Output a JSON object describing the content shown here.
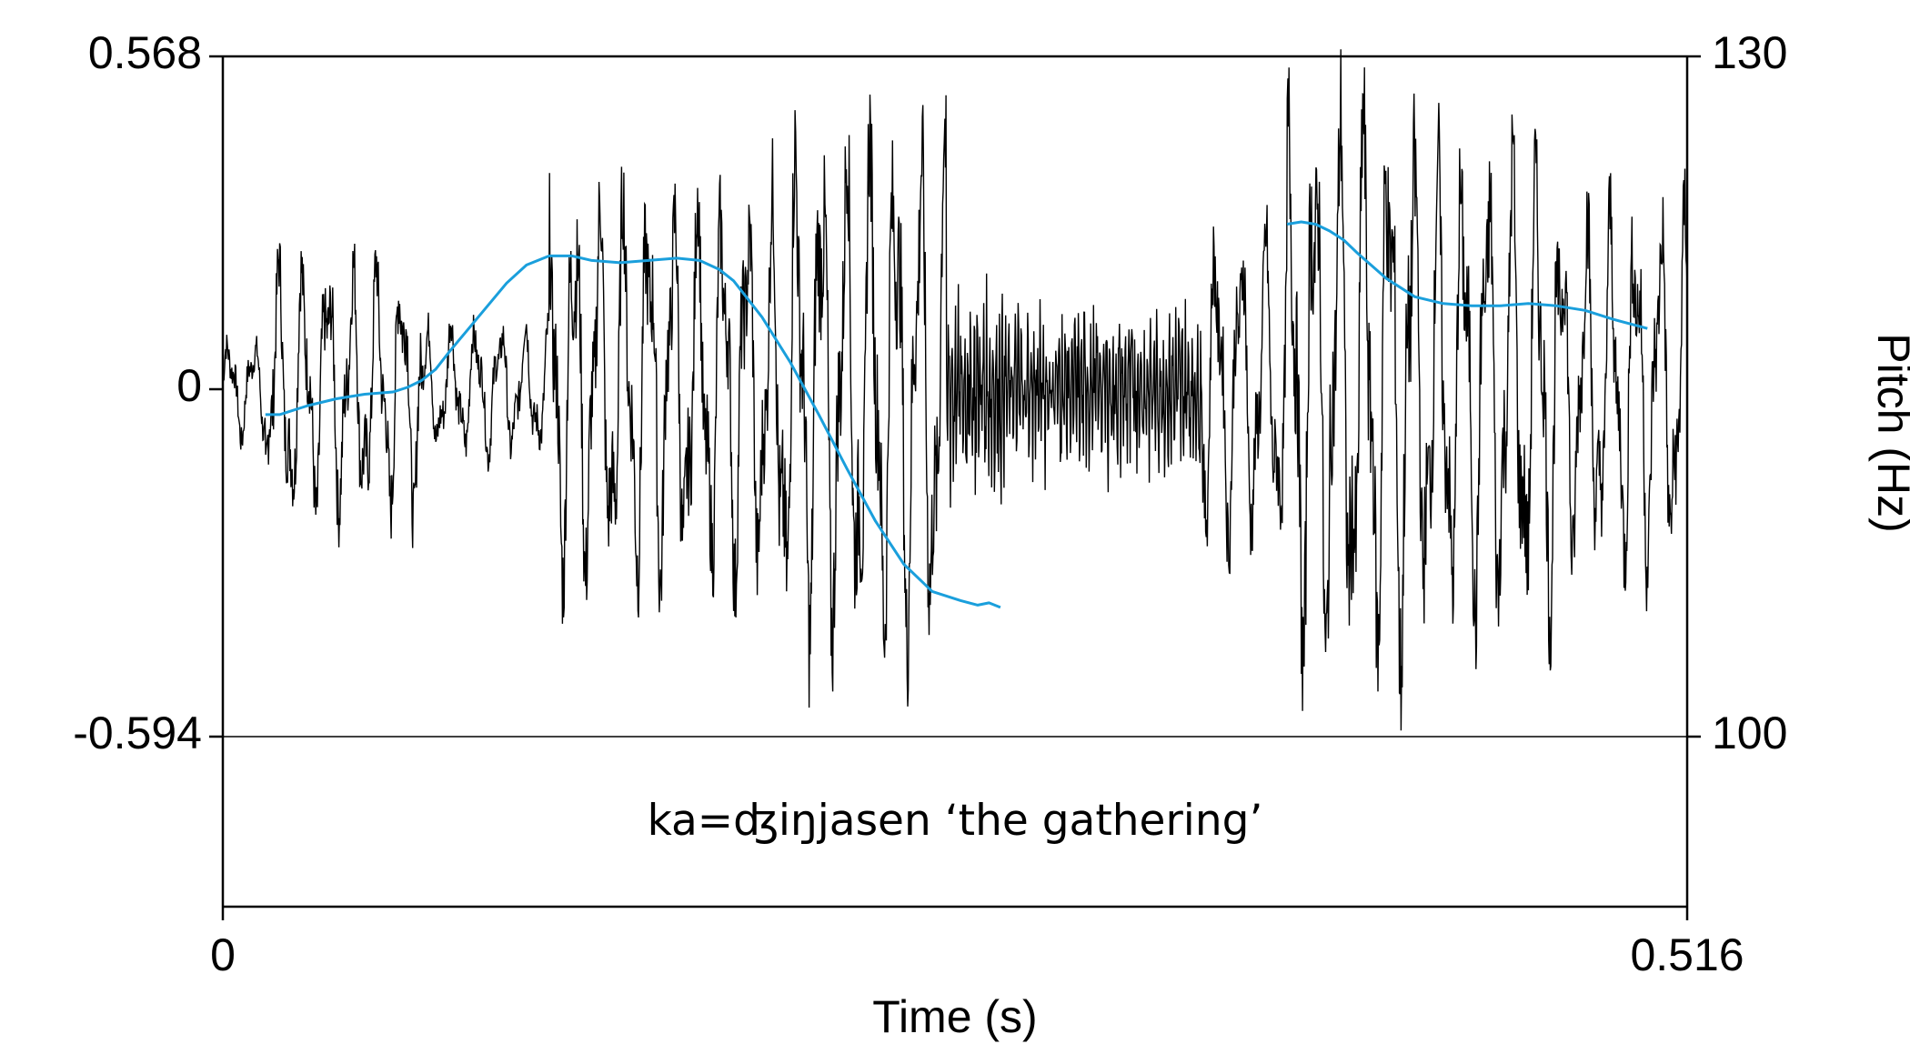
{
  "chart_data": {
    "type": "line",
    "xlabel": "Time (s)",
    "ylabel_right": "Pitch (Hz)",
    "x_ticks": [
      "0",
      "0.516"
    ],
    "y_left_ticks": [
      "0.568",
      "0",
      "-0.594"
    ],
    "y_right_ticks": [
      "130",
      "100"
    ],
    "xlim": [
      0,
      0.516
    ],
    "ylim_left": [
      -0.594,
      0.568
    ],
    "ylim_right": [
      100,
      130
    ],
    "annotation": "ka=ʤiŋjasen ‘the gathering’",
    "grid": false,
    "colors": {
      "waveform": "#000000",
      "pitch": "#1a9fdc",
      "frame": "#000000"
    },
    "waveform": {
      "name": "amplitude",
      "description_segments": [
        {
          "t_start": 0.0,
          "t_end": 0.015,
          "amplitude": 0.1
        },
        {
          "t_start": 0.015,
          "t_end": 0.07,
          "amplitude": 0.25
        },
        {
          "t_start": 0.07,
          "t_end": 0.115,
          "amplitude": 0.13
        },
        {
          "t_start": 0.115,
          "t_end": 0.195,
          "amplitude": 0.38
        },
        {
          "t_start": 0.195,
          "t_end": 0.255,
          "amplitude": 0.5
        },
        {
          "t_start": 0.255,
          "t_end": 0.275,
          "amplitude": 0.15
        },
        {
          "t_start": 0.275,
          "t_end": 0.345,
          "amplitude": 0.12
        },
        {
          "t_start": 0.345,
          "t_end": 0.375,
          "amplitude": 0.3
        },
        {
          "t_start": 0.375,
          "t_end": 0.42,
          "amplitude": 0.55
        },
        {
          "t_start": 0.42,
          "t_end": 0.47,
          "amplitude": 0.45
        },
        {
          "t_start": 0.47,
          "t_end": 0.516,
          "amplitude": 0.35
        }
      ]
    },
    "pitch_series": [
      {
        "x": [
          0.015,
          0.02,
          0.03,
          0.04,
          0.05,
          0.06,
          0.065,
          0.07,
          0.075,
          0.08,
          0.09,
          0.1,
          0.107,
          0.115,
          0.123,
          0.13,
          0.14,
          0.15,
          0.16,
          0.168,
          0.175,
          0.18,
          0.19,
          0.2,
          0.21,
          0.22,
          0.23,
          0.24,
          0.25,
          0.26,
          0.266,
          0.27,
          0.274
        ],
        "y": [
          114.2,
          114.2,
          114.6,
          114.9,
          115.1,
          115.2,
          115.4,
          115.7,
          116.2,
          117.0,
          118.5,
          120.0,
          120.8,
          121.2,
          121.2,
          121.0,
          120.9,
          121.0,
          121.1,
          121.0,
          120.6,
          120.1,
          118.5,
          116.5,
          114.2,
          111.8,
          109.5,
          107.6,
          106.4,
          106.0,
          105.8,
          105.9,
          105.7
        ]
      },
      {
        "x": [
          0.375,
          0.38,
          0.385,
          0.39,
          0.395,
          0.4,
          0.41,
          0.42,
          0.43,
          0.44,
          0.45,
          0.46,
          0.47,
          0.48,
          0.49,
          0.502
        ],
        "y": [
          122.6,
          122.7,
          122.6,
          122.3,
          121.9,
          121.3,
          120.2,
          119.4,
          119.1,
          119.0,
          119.0,
          119.1,
          119.0,
          118.8,
          118.4,
          118.0
        ]
      }
    ]
  }
}
